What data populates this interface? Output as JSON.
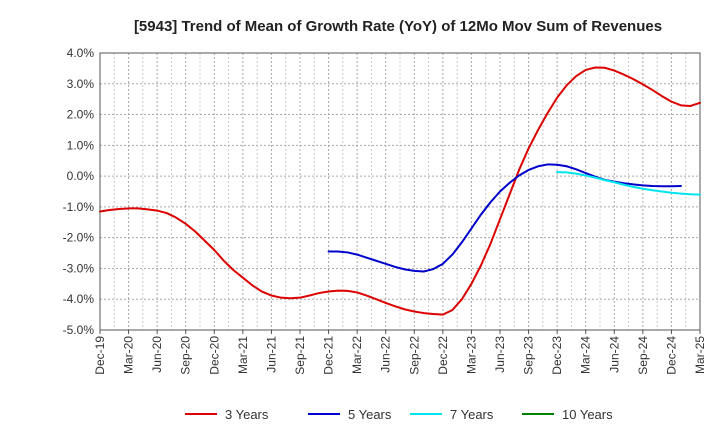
{
  "chart_data": {
    "type": "line",
    "title": "[5943]  Trend of Mean of Growth Rate (YoY) of 12Mo Mov Sum of Revenues",
    "xlabel": "",
    "ylabel": "",
    "ylim": [
      -5.0,
      4.0
    ],
    "y_ticks": [
      4.0,
      3.0,
      2.0,
      1.0,
      0.0,
      -1.0,
      -2.0,
      -3.0,
      -4.0,
      -5.0
    ],
    "y_tick_labels": [
      "4.0%",
      "3.0%",
      "2.0%",
      "1.0%",
      "0.0%",
      "-1.0%",
      "-2.0%",
      "-3.0%",
      "-4.0%",
      "-5.0%"
    ],
    "x_tick_labels": [
      "Dec-19",
      "Mar-20",
      "Jun-20",
      "Sep-20",
      "Dec-20",
      "Mar-21",
      "Jun-21",
      "Sep-21",
      "Dec-21",
      "Mar-22",
      "Jun-22",
      "Sep-22",
      "Dec-22",
      "Mar-23",
      "Jun-23",
      "Sep-23",
      "Dec-23",
      "Mar-24",
      "Jun-24",
      "Sep-24",
      "Dec-24",
      "Mar-25"
    ],
    "x_start": "Dec-19",
    "x_step_months": 1,
    "grid": true,
    "legend_position": "bottom",
    "series": [
      {
        "name": "3 Years",
        "color": "#dd0000",
        "start_index": 0,
        "values": [
          -1.15,
          -1.1,
          -1.07,
          -1.05,
          -1.05,
          -1.08,
          -1.12,
          -1.2,
          -1.35,
          -1.55,
          -1.8,
          -2.1,
          -2.4,
          -2.75,
          -3.05,
          -3.3,
          -3.55,
          -3.75,
          -3.88,
          -3.95,
          -3.97,
          -3.95,
          -3.88,
          -3.8,
          -3.75,
          -3.72,
          -3.73,
          -3.78,
          -3.88,
          -4.0,
          -4.12,
          -4.23,
          -4.33,
          -4.4,
          -4.45,
          -4.48,
          -4.5,
          -4.35,
          -4.0,
          -3.5,
          -2.9,
          -2.2,
          -1.4,
          -0.6,
          0.2,
          0.9,
          1.5,
          2.05,
          2.55,
          2.95,
          3.25,
          3.45,
          3.53,
          3.52,
          3.43,
          3.3,
          3.15,
          2.98,
          2.8,
          2.6,
          2.42,
          2.3,
          2.28,
          2.38
        ]
      },
      {
        "name": "5 Years",
        "color": "#0000cc",
        "start_index": 24,
        "values": [
          -2.45,
          -2.45,
          -2.48,
          -2.55,
          -2.65,
          -2.75,
          -2.85,
          -2.95,
          -3.03,
          -3.08,
          -3.1,
          -3.02,
          -2.85,
          -2.55,
          -2.15,
          -1.7,
          -1.25,
          -0.85,
          -0.5,
          -0.22,
          0.02,
          0.2,
          0.32,
          0.38,
          0.37,
          0.32,
          0.22,
          0.1,
          -0.02,
          -0.12,
          -0.18,
          -0.23,
          -0.27,
          -0.3,
          -0.32,
          -0.33,
          -0.33,
          -0.32
        ]
      },
      {
        "name": "7 Years",
        "color": "#00e5ee",
        "start_index": 48,
        "values": [
          0.13,
          0.12,
          0.08,
          0.02,
          -0.05,
          -0.13,
          -0.2,
          -0.28,
          -0.35,
          -0.41,
          -0.46,
          -0.5,
          -0.54,
          -0.57,
          -0.59,
          -0.6
        ]
      },
      {
        "name": "10 Years",
        "color": "#008000",
        "start_index": 48,
        "values": []
      }
    ]
  }
}
